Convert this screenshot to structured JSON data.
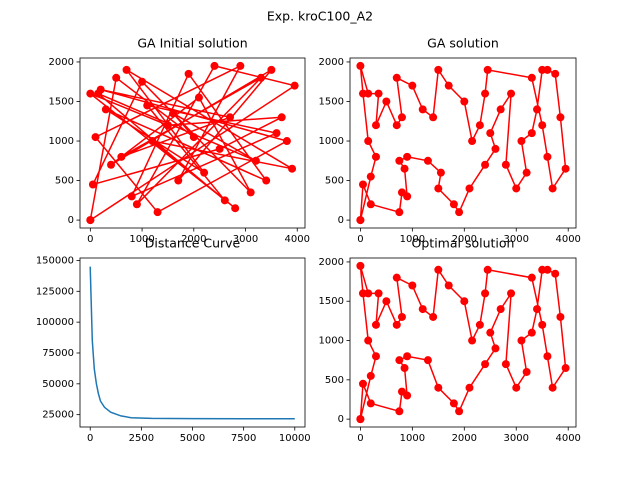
{
  "title": "Exp. kroC100_A2",
  "chart_data": [
    {
      "type": "line",
      "title": "GA Initial solution",
      "color": "#ff0000",
      "markers": true,
      "x": [
        0,
        3950,
        2400,
        900,
        3300,
        600,
        2700,
        200,
        3800,
        1300,
        100,
        2900,
        1700,
        3500,
        400,
        2100,
        3100,
        1000,
        50,
        2500,
        3700,
        1500,
        0,
        2800,
        1200,
        3900,
        700,
        2200,
        300,
        3400,
        1900,
        800,
        3600,
        1100,
        2600,
        150,
        3200,
        1600,
        2000,
        500,
        0
      ],
      "values": [
        0,
        1700,
        1950,
        200,
        1800,
        800,
        1300,
        1650,
        1000,
        100,
        1050,
        1950,
        500,
        1900,
        700,
        1550,
        350,
        1750,
        450,
        900,
        1300,
        1200,
        1600,
        150,
        1000,
        650,
        1900,
        600,
        1400,
        500,
        1850,
        300,
        1100,
        1450,
        250,
        1600,
        750,
        1350,
        1050,
        1800,
        0
      ],
      "xlim": [
        -200,
        4150
      ],
      "ylim": [
        -100,
        2050
      ],
      "xticks": [
        0,
        1000,
        2000,
        3000,
        4000
      ],
      "yticks": [
        0,
        500,
        1000,
        1500,
        2000
      ]
    },
    {
      "type": "line",
      "title": "GA solution",
      "color": "#ff0000",
      "markers": true,
      "x": [
        0,
        50,
        200,
        750,
        800,
        900,
        850,
        750,
        900,
        1300,
        1550,
        1500,
        1800,
        1900,
        2100,
        2400,
        2600,
        2500,
        2700,
        2900,
        2800,
        3000,
        3200,
        3100,
        3300,
        3400,
        3500,
        3600,
        3750,
        3850,
        3950,
        3700,
        3600,
        3500,
        3300,
        2450,
        2400,
        2300,
        2150,
        2000,
        1700,
        1500,
        1400,
        1200,
        1000,
        700,
        800,
        700,
        500,
        300,
        350,
        150,
        0,
        50,
        150,
        300,
        200,
        0
      ],
      "values": [
        0,
        450,
        200,
        100,
        350,
        300,
        650,
        750,
        800,
        750,
        600,
        400,
        200,
        100,
        400,
        700,
        900,
        1100,
        1400,
        1600,
        700,
        400,
        600,
        1000,
        1100,
        1400,
        1900,
        1900,
        1850,
        1300,
        650,
        400,
        800,
        1200,
        1800,
        1900,
        1600,
        1200,
        1000,
        1500,
        1700,
        1900,
        1300,
        1400,
        1700,
        1800,
        1300,
        1200,
        1500,
        1200,
        1600,
        1600,
        1950,
        1600,
        1000,
        800,
        550,
        0
      ],
      "xlim": [
        -200,
        4150
      ],
      "ylim": [
        -100,
        2050
      ],
      "xticks": [
        0,
        1000,
        2000,
        3000,
        4000
      ],
      "yticks": [
        0,
        500,
        1000,
        1500,
        2000
      ]
    },
    {
      "type": "line",
      "title": "Distance Curve",
      "color": "#1f77b4",
      "markers": false,
      "x": [
        0,
        100,
        200,
        300,
        400,
        500,
        700,
        1000,
        1500,
        2000,
        3000,
        5000,
        7500,
        10000
      ],
      "values": [
        145000,
        85000,
        62000,
        50000,
        42000,
        36000,
        31000,
        27000,
        24000,
        22500,
        22000,
        21800,
        21700,
        21700
      ],
      "xlim": [
        -500,
        10500
      ],
      "ylim": [
        15000,
        152000
      ],
      "xticks": [
        0,
        2500,
        5000,
        7500,
        10000
      ],
      "yticks": [
        25000,
        50000,
        75000,
        100000,
        125000,
        150000
      ]
    },
    {
      "type": "line",
      "title": "Optimal solution",
      "color": "#ff0000",
      "markers": true,
      "x": [
        0,
        50,
        200,
        750,
        800,
        900,
        850,
        750,
        900,
        1300,
        1500,
        1800,
        1900,
        2100,
        2400,
        2600,
        2500,
        2700,
        2900,
        2800,
        3000,
        3200,
        3100,
        3300,
        3400,
        3500,
        3600,
        3750,
        3850,
        3950,
        3700,
        3600,
        3500,
        3300,
        2450,
        2400,
        2300,
        2150,
        2000,
        1700,
        1500,
        1400,
        1200,
        1000,
        700,
        800,
        700,
        500,
        300,
        350,
        150,
        0,
        50,
        150,
        300,
        200,
        0
      ],
      "values": [
        0,
        450,
        200,
        100,
        350,
        300,
        650,
        750,
        800,
        750,
        400,
        200,
        100,
        400,
        700,
        900,
        1100,
        1400,
        1600,
        700,
        400,
        600,
        1000,
        1100,
        1400,
        1900,
        1900,
        1850,
        1300,
        650,
        400,
        800,
        1200,
        1800,
        1900,
        1600,
        1200,
        1000,
        1500,
        1700,
        1900,
        1300,
        1400,
        1700,
        1800,
        1300,
        1200,
        1500,
        1200,
        1600,
        1600,
        1950,
        1600,
        1000,
        800,
        550,
        0
      ],
      "xlim": [
        -200,
        4150
      ],
      "ylim": [
        -100,
        2050
      ],
      "xticks": [
        0,
        1000,
        2000,
        3000,
        4000
      ],
      "yticks": [
        0,
        500,
        1000,
        1500,
        2000
      ]
    }
  ]
}
